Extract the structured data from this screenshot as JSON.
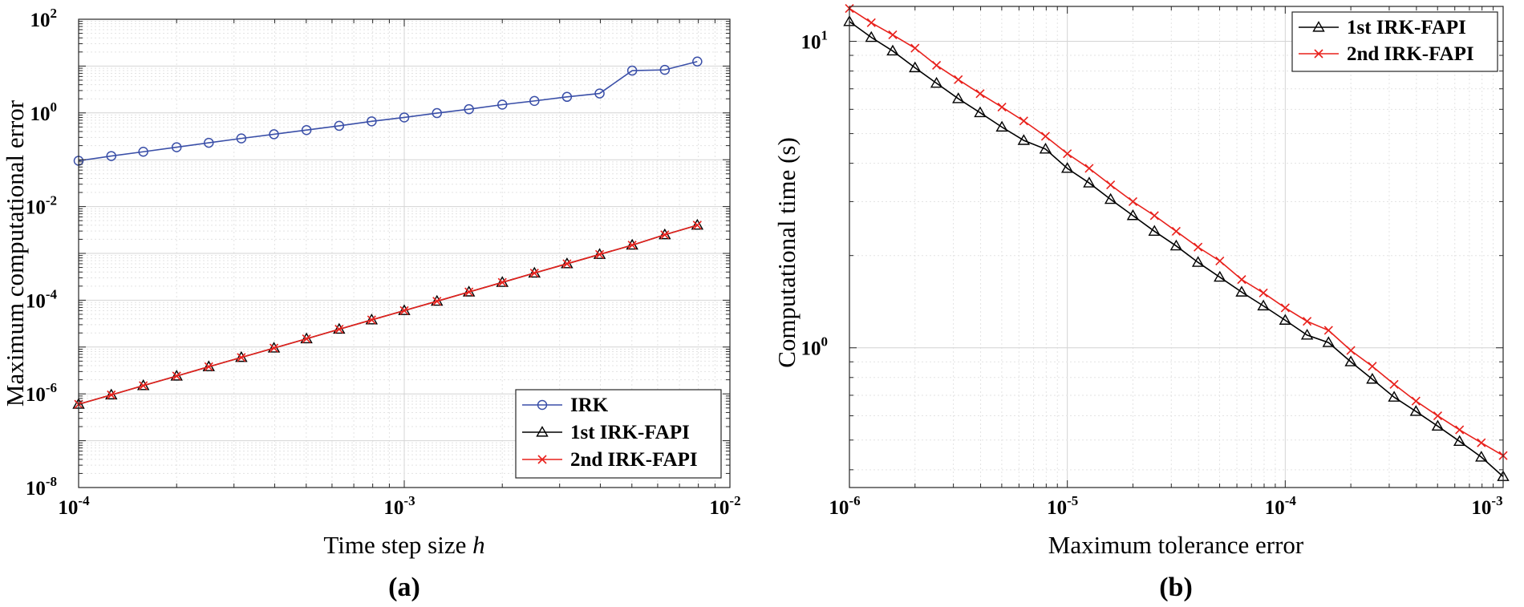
{
  "chart_data": [
    {
      "id": "a",
      "type": "line",
      "panel_label": "(a)",
      "xlabel": "Time step size",
      "xlabel_var": "h",
      "ylabel": "Maximum computational error",
      "xscale": "log",
      "yscale": "log",
      "xlim": [
        0.0001,
        0.01
      ],
      "ylim": [
        1e-08,
        100
      ],
      "grid": true,
      "legend_position": "bottom-right",
      "x_ticks": [
        {
          "value": 0.0001,
          "base": "10",
          "exp": "-4"
        },
        {
          "value": 0.001,
          "base": "10",
          "exp": "-3"
        },
        {
          "value": 0.01,
          "base": "10",
          "exp": "-2"
        }
      ],
      "y_ticks": [
        {
          "value": 1e-08,
          "base": "10",
          "exp": "-8"
        },
        {
          "value": 1e-06,
          "base": "10",
          "exp": "-6"
        },
        {
          "value": 0.0001,
          "base": "10",
          "exp": "-4"
        },
        {
          "value": 0.01,
          "base": "10",
          "exp": "-2"
        },
        {
          "value": 1,
          "base": "10",
          "exp": "0"
        },
        {
          "value": 100,
          "base": "10",
          "exp": "2"
        }
      ],
      "x": [
        0.0001,
        0.000126,
        0.000158,
        0.0002,
        0.000251,
        0.000316,
        0.000398,
        0.000501,
        0.000631,
        0.000794,
        0.001,
        0.00126,
        0.00158,
        0.002,
        0.00251,
        0.00316,
        0.00398,
        0.00501,
        0.00631,
        0.00794
      ],
      "series": [
        {
          "name": "IRK",
          "color": "#3a4fa8",
          "marker": "circle",
          "values": [
            0.095,
            0.12,
            0.148,
            0.185,
            0.23,
            0.285,
            0.35,
            0.43,
            0.53,
            0.66,
            0.8,
            0.99,
            1.2,
            1.5,
            1.8,
            2.2,
            2.6,
            8.0,
            8.3,
            12.5
          ]
        },
        {
          "name": "1st IRK-FAPI",
          "color": "#000000",
          "marker": "triangle",
          "values": [
            6e-07,
            9.5e-07,
            1.5e-06,
            2.4e-06,
            3.8e-06,
            6e-06,
            9.5e-06,
            1.5e-05,
            2.4e-05,
            3.8e-05,
            6e-05,
            9.5e-05,
            0.00015,
            0.00024,
            0.00038,
            0.0006,
            0.00095,
            0.0015,
            0.0025,
            0.004
          ]
        },
        {
          "name": "2nd IRK-FAPI",
          "color": "#e8211c",
          "marker": "x",
          "values": [
            6e-07,
            9.5e-07,
            1.5e-06,
            2.4e-06,
            3.8e-06,
            6e-06,
            9.5e-06,
            1.5e-05,
            2.4e-05,
            3.8e-05,
            6e-05,
            9.5e-05,
            0.00015,
            0.00024,
            0.00038,
            0.0006,
            0.00095,
            0.0015,
            0.0025,
            0.004
          ]
        }
      ]
    },
    {
      "id": "b",
      "type": "line",
      "panel_label": "(b)",
      "xlabel": "Maximum tolerance error",
      "ylabel": "Computational time (s)",
      "xscale": "log",
      "yscale": "log",
      "xlim": [
        1e-06,
        0.001
      ],
      "ylim": [
        0.35,
        13
      ],
      "grid": true,
      "legend_position": "top-right",
      "x_ticks": [
        {
          "value": 1e-06,
          "base": "10",
          "exp": "-6"
        },
        {
          "value": 1e-05,
          "base": "10",
          "exp": "-5"
        },
        {
          "value": 0.0001,
          "base": "10",
          "exp": "-4"
        },
        {
          "value": 0.001,
          "base": "10",
          "exp": "-3"
        }
      ],
      "y_ticks": [
        {
          "value": 1,
          "base": "10",
          "exp": "0"
        },
        {
          "value": 10,
          "base": "10",
          "exp": "1"
        }
      ],
      "x": [
        1e-06,
        1.26e-06,
        1.58e-06,
        2e-06,
        2.51e-06,
        3.16e-06,
        3.98e-06,
        5.01e-06,
        6.31e-06,
        7.94e-06,
        1e-05,
        1.26e-05,
        1.58e-05,
        2e-05,
        2.51e-05,
        3.16e-05,
        3.98e-05,
        5.01e-05,
        6.31e-05,
        7.94e-05,
        0.0001,
        0.000126,
        0.000158,
        0.0002,
        0.000251,
        0.000316,
        0.000398,
        0.000501,
        0.000631,
        0.000794,
        0.001
      ],
      "series": [
        {
          "name": "1st IRK-FAPI",
          "color": "#000000",
          "marker": "triangle",
          "values": [
            11.6,
            10.3,
            9.3,
            8.2,
            7.3,
            6.5,
            5.85,
            5.25,
            4.75,
            4.45,
            3.85,
            3.45,
            3.05,
            2.7,
            2.4,
            2.15,
            1.9,
            1.7,
            1.52,
            1.37,
            1.23,
            1.1,
            1.04,
            0.9,
            0.79,
            0.69,
            0.62,
            0.555,
            0.495,
            0.44,
            0.38
          ]
        },
        {
          "name": "2nd IRK-FAPI",
          "color": "#e8211c",
          "marker": "x",
          "values": [
            12.8,
            11.5,
            10.5,
            9.5,
            8.35,
            7.5,
            6.75,
            6.1,
            5.5,
            4.9,
            4.3,
            3.85,
            3.4,
            3.0,
            2.7,
            2.4,
            2.13,
            1.92,
            1.67,
            1.51,
            1.35,
            1.22,
            1.14,
            0.98,
            0.87,
            0.76,
            0.67,
            0.6,
            0.54,
            0.49,
            0.445
          ]
        }
      ]
    }
  ]
}
